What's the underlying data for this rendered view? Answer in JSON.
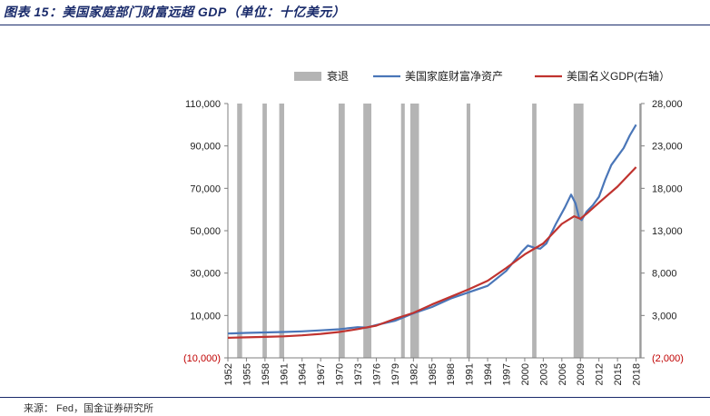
{
  "figure": {
    "title": "图表 15：美国家庭部门财富远超 GDP（单位：十亿美元）",
    "source": "来源： Fed，国金证券研究所"
  },
  "colors": {
    "accent": "#1a2b6b",
    "wealth": "#4a76b8",
    "gdp": "#c0332f",
    "recession": "#b4b4b4",
    "negative_tick": "#c00000"
  },
  "chart_data": {
    "type": "line",
    "title": "美国家庭部门财富远超 GDP（单位：十亿美元）",
    "legend_position": "top-right",
    "legend": [
      "衰退",
      "美国家庭财富净资产",
      "美国名义GDP(右轴）"
    ],
    "x_ticks": [
      "1952",
      "1955",
      "1958",
      "1961",
      "1964",
      "1967",
      "1970",
      "1973",
      "1976",
      "1979",
      "1982",
      "1985",
      "1988",
      "1991",
      "1994",
      "1997",
      "2000",
      "2003",
      "2006",
      "2009",
      "2012",
      "2015",
      "2018"
    ],
    "xlim": [
      1952,
      2018.8
    ],
    "y_left": {
      "ylim": [
        -10000,
        110000
      ],
      "ticks": [
        -10000,
        10000,
        30000,
        50000,
        70000,
        90000,
        110000
      ],
      "tick_labels": [
        "(10,000)",
        "10,000",
        "30,000",
        "50,000",
        "70,000",
        "90,000",
        "110,000"
      ]
    },
    "y_right": {
      "ylim": [
        -2000,
        28000
      ],
      "ticks": [
        -2000,
        3000,
        8000,
        13000,
        18000,
        23000,
        28000
      ],
      "tick_labels": [
        "(2,000)",
        "3,000",
        "8,000",
        "13,000",
        "18,000",
        "23,000",
        "28,000"
      ]
    },
    "recessions": [
      [
        1953.5,
        1954.3
      ],
      [
        1957.6,
        1958.3
      ],
      [
        1960.3,
        1961.1
      ],
      [
        1969.9,
        1970.9
      ],
      [
        1973.9,
        1975.2
      ],
      [
        1980.0,
        1980.6
      ],
      [
        1981.5,
        1982.9
      ],
      [
        1990.6,
        1991.2
      ],
      [
        2001.2,
        2001.9
      ],
      [
        2007.9,
        2009.5
      ],
      [
        2018.5,
        2018.8
      ]
    ],
    "series": [
      {
        "name": "美国家庭财富净资产",
        "axis": "left",
        "points": [
          [
            1952,
            1500
          ],
          [
            1955,
            1800
          ],
          [
            1958,
            2000
          ],
          [
            1961,
            2200
          ],
          [
            1964,
            2500
          ],
          [
            1967,
            3000
          ],
          [
            1970,
            3500
          ],
          [
            1973,
            4500
          ],
          [
            1974.5,
            4300
          ],
          [
            1976,
            5500
          ],
          [
            1979,
            7500
          ],
          [
            1982,
            11000
          ],
          [
            1985,
            14000
          ],
          [
            1988,
            18000
          ],
          [
            1991,
            21000
          ],
          [
            1994,
            24000
          ],
          [
            1997,
            31000
          ],
          [
            1999.5,
            40000
          ],
          [
            2000.5,
            43000
          ],
          [
            2001.5,
            42000
          ],
          [
            2002.5,
            41500
          ],
          [
            2003.5,
            44000
          ],
          [
            2005,
            53000
          ],
          [
            2006.5,
            61000
          ],
          [
            2007.5,
            67000
          ],
          [
            2008.2,
            63000
          ],
          [
            2008.8,
            56000
          ],
          [
            2009.2,
            55000
          ],
          [
            2010,
            59000
          ],
          [
            2011,
            62000
          ],
          [
            2012,
            66000
          ],
          [
            2013,
            74000
          ],
          [
            2014,
            81000
          ],
          [
            2015,
            85000
          ],
          [
            2016,
            89000
          ],
          [
            2017,
            95000
          ],
          [
            2018,
            100000
          ]
        ]
      },
      {
        "name": "美国名义GDP(右轴）",
        "axis": "right",
        "points": [
          [
            1952,
            370
          ],
          [
            1955,
            420
          ],
          [
            1958,
            480
          ],
          [
            1961,
            540
          ],
          [
            1964,
            660
          ],
          [
            1967,
            830
          ],
          [
            1970,
            1050
          ],
          [
            1973,
            1400
          ],
          [
            1976,
            1800
          ],
          [
            1979,
            2600
          ],
          [
            1982,
            3300
          ],
          [
            1985,
            4300
          ],
          [
            1988,
            5200
          ],
          [
            1991,
            6100
          ],
          [
            1994,
            7100
          ],
          [
            1997,
            8600
          ],
          [
            2000,
            10200
          ],
          [
            2003,
            11500
          ],
          [
            2006,
            13800
          ],
          [
            2008,
            14700
          ],
          [
            2009,
            14400
          ],
          [
            2010,
            15000
          ],
          [
            2012,
            16300
          ],
          [
            2015,
            18200
          ],
          [
            2018,
            20500
          ]
        ]
      }
    ]
  }
}
